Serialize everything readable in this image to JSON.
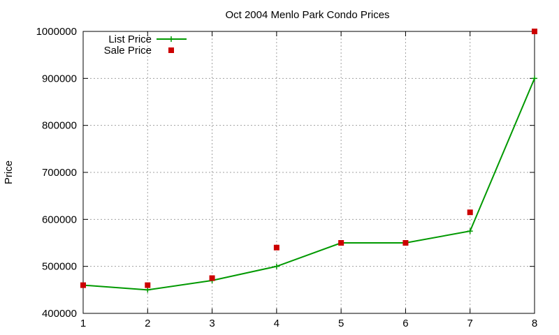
{
  "chart_data": {
    "type": "line",
    "title": "Oct 2004 Menlo Park Condo Prices",
    "xlabel": "",
    "ylabel": "Price",
    "x": [
      1,
      2,
      3,
      4,
      5,
      6,
      7,
      8
    ],
    "xlim": [
      1,
      8
    ],
    "ylim": [
      400000,
      1000000
    ],
    "xticks": [
      "1",
      "2",
      "3",
      "4",
      "5",
      "6",
      "7",
      "8"
    ],
    "yticks": [
      "400000",
      "500000",
      "600000",
      "700000",
      "800000",
      "900000",
      "1000000"
    ],
    "grid": true,
    "legend_position": "top-left",
    "series": [
      {
        "name": "List Price",
        "style": "line-with-plus-markers",
        "color": "#009900",
        "values": [
          460000,
          450000,
          470000,
          500000,
          550000,
          550000,
          575000,
          900000
        ]
      },
      {
        "name": "Sale Price",
        "style": "square-markers",
        "color": "#cc0000",
        "values": [
          460000,
          460000,
          475000,
          540000,
          550000,
          550000,
          615000,
          1000000
        ]
      }
    ]
  }
}
